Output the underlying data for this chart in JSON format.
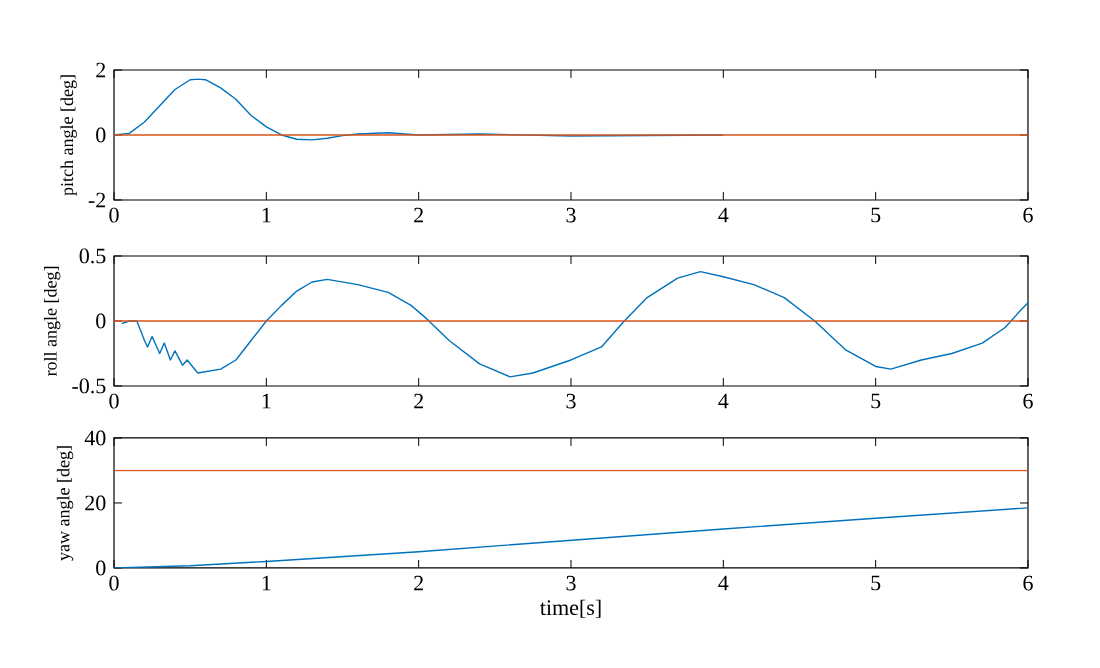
{
  "chart_data": [
    {
      "type": "line",
      "ylabel": "pitch angle [deg]",
      "xlim": [
        0,
        6
      ],
      "ylim": [
        -2,
        2
      ],
      "xticks": [
        0,
        1,
        2,
        3,
        4,
        5,
        6
      ],
      "yticks": [
        -2,
        0,
        2
      ],
      "grid": false,
      "marker": "none",
      "series": [
        {
          "color": "#0072bd",
          "x": [
            0,
            0.1,
            0.2,
            0.3,
            0.4,
            0.5,
            0.55,
            0.6,
            0.7,
            0.8,
            0.9,
            1.0,
            1.1,
            1.2,
            1.3,
            1.4,
            1.5,
            1.6,
            1.8,
            2.0,
            2.4,
            3.0,
            4.0
          ],
          "values": [
            0,
            0.05,
            0.4,
            0.9,
            1.4,
            1.7,
            1.72,
            1.7,
            1.45,
            1.1,
            0.6,
            0.25,
            0,
            -0.13,
            -0.15,
            -0.1,
            -0.02,
            0.03,
            0.07,
            0,
            0.03,
            -0.03,
            0
          ]
        },
        {
          "color": "#d95319",
          "x": [
            0,
            6
          ],
          "values": [
            0,
            0
          ]
        }
      ]
    },
    {
      "type": "line",
      "ylabel": "roll angle [deg]",
      "xlim": [
        0,
        6
      ],
      "ylim": [
        -0.5,
        0.5
      ],
      "xticks": [
        0,
        1,
        2,
        3,
        4,
        5,
        6
      ],
      "yticks": [
        -0.5,
        0,
        0.5
      ],
      "grid": false,
      "marker": "none",
      "series": [
        {
          "color": "#0072bd",
          "x": [
            0.05,
            0.1,
            0.15,
            0.2,
            0.22,
            0.25,
            0.3,
            0.33,
            0.37,
            0.4,
            0.45,
            0.48,
            0.55,
            0.7,
            0.8,
            0.9,
            1.0,
            1.1,
            1.2,
            1.3,
            1.4,
            1.6,
            1.8,
            1.95,
            2.05,
            2.2,
            2.4,
            2.6,
            2.75,
            3.0,
            3.2,
            3.35,
            3.5,
            3.7,
            3.85,
            4.0,
            4.2,
            4.4,
            4.6,
            4.8,
            5.0,
            5.1,
            5.3,
            5.5,
            5.7,
            5.85,
            5.95,
            6.0
          ],
          "values": [
            -0.02,
            0,
            0,
            -0.15,
            -0.2,
            -0.12,
            -0.25,
            -0.17,
            -0.3,
            -0.23,
            -0.34,
            -0.3,
            -0.4,
            -0.37,
            -0.3,
            -0.15,
            0,
            0.12,
            0.23,
            0.3,
            0.32,
            0.28,
            0.22,
            0.12,
            0.02,
            -0.15,
            -0.33,
            -0.43,
            -0.4,
            -0.3,
            -0.2,
            0,
            0.18,
            0.33,
            0.38,
            0.34,
            0.28,
            0.18,
            0,
            -0.22,
            -0.35,
            -0.37,
            -0.3,
            -0.25,
            -0.17,
            -0.05,
            0.08,
            0.14
          ]
        },
        {
          "color": "#d95319",
          "x": [
            0,
            6
          ],
          "values": [
            0,
            0
          ]
        }
      ]
    },
    {
      "type": "line",
      "ylabel": "yaw angle [deg]",
      "xlabel": "time[s]",
      "xlim": [
        0,
        6
      ],
      "ylim": [
        0,
        40
      ],
      "xticks": [
        0,
        1,
        2,
        3,
        4,
        5,
        6
      ],
      "yticks": [
        0,
        20,
        40
      ],
      "grid": false,
      "marker": "none",
      "series": [
        {
          "color": "#0072bd",
          "x": [
            0,
            0.5,
            1,
            2,
            3,
            4,
            5,
            6
          ],
          "values": [
            0,
            0.7,
            2,
            5,
            8.5,
            12,
            15.3,
            18.5
          ]
        },
        {
          "color": "#d95319",
          "x": [
            0,
            6
          ],
          "values": [
            30,
            30
          ]
        }
      ]
    }
  ]
}
